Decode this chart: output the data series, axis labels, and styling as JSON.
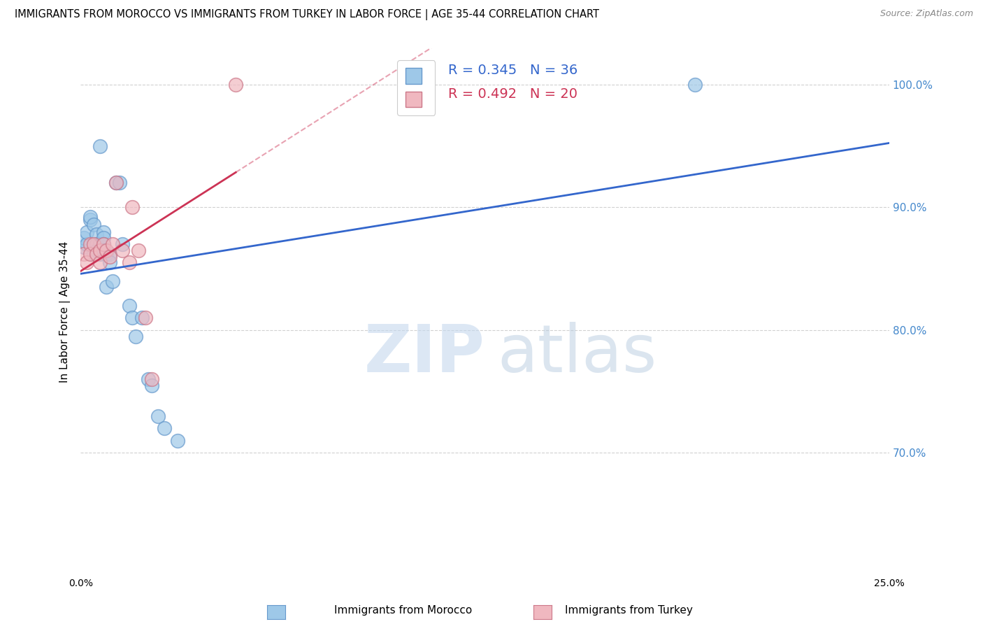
{
  "title": "IMMIGRANTS FROM MOROCCO VS IMMIGRANTS FROM TURKEY IN LABOR FORCE | AGE 35-44 CORRELATION CHART",
  "source": "Source: ZipAtlas.com",
  "ylabel_label": "In Labor Force | Age 35-44",
  "xlim": [
    0.0,
    0.25
  ],
  "ylim": [
    0.6,
    1.03
  ],
  "morocco_color": "#9ec8e8",
  "morocco_edge_color": "#6699cc",
  "turkey_color": "#f0b8c0",
  "turkey_edge_color": "#cc7788",
  "morocco_R": 0.345,
  "morocco_N": 36,
  "turkey_R": 0.492,
  "turkey_N": 20,
  "trend_morocco_color": "#3366cc",
  "trend_turkey_color": "#cc3355",
  "background_color": "#ffffff",
  "grid_color": "#cccccc",
  "morocco_x": [
    0.001,
    0.001,
    0.002,
    0.002,
    0.003,
    0.003,
    0.004,
    0.004,
    0.005,
    0.005,
    0.005,
    0.006,
    0.006,
    0.006,
    0.007,
    0.007,
    0.007,
    0.007,
    0.008,
    0.008,
    0.009,
    0.009,
    0.01,
    0.011,
    0.012,
    0.013,
    0.015,
    0.016,
    0.017,
    0.019,
    0.021,
    0.022,
    0.024,
    0.026,
    0.03,
    0.19
  ],
  "morocco_y": [
    0.868,
    0.875,
    0.87,
    0.88,
    0.89,
    0.892,
    0.886,
    0.862,
    0.878,
    0.87,
    0.865,
    0.87,
    0.862,
    0.95,
    0.88,
    0.875,
    0.87,
    0.865,
    0.862,
    0.835,
    0.862,
    0.855,
    0.84,
    0.92,
    0.92,
    0.87,
    0.82,
    0.81,
    0.795,
    0.81,
    0.76,
    0.755,
    0.73,
    0.72,
    0.71,
    1.0
  ],
  "turkey_x": [
    0.001,
    0.002,
    0.003,
    0.003,
    0.004,
    0.005,
    0.006,
    0.006,
    0.007,
    0.008,
    0.009,
    0.01,
    0.011,
    0.013,
    0.015,
    0.016,
    0.018,
    0.02,
    0.022,
    0.048
  ],
  "turkey_y": [
    0.862,
    0.855,
    0.87,
    0.862,
    0.87,
    0.862,
    0.855,
    0.865,
    0.87,
    0.865,
    0.86,
    0.87,
    0.92,
    0.865,
    0.855,
    0.9,
    0.865,
    0.81,
    0.76,
    1.0
  ]
}
